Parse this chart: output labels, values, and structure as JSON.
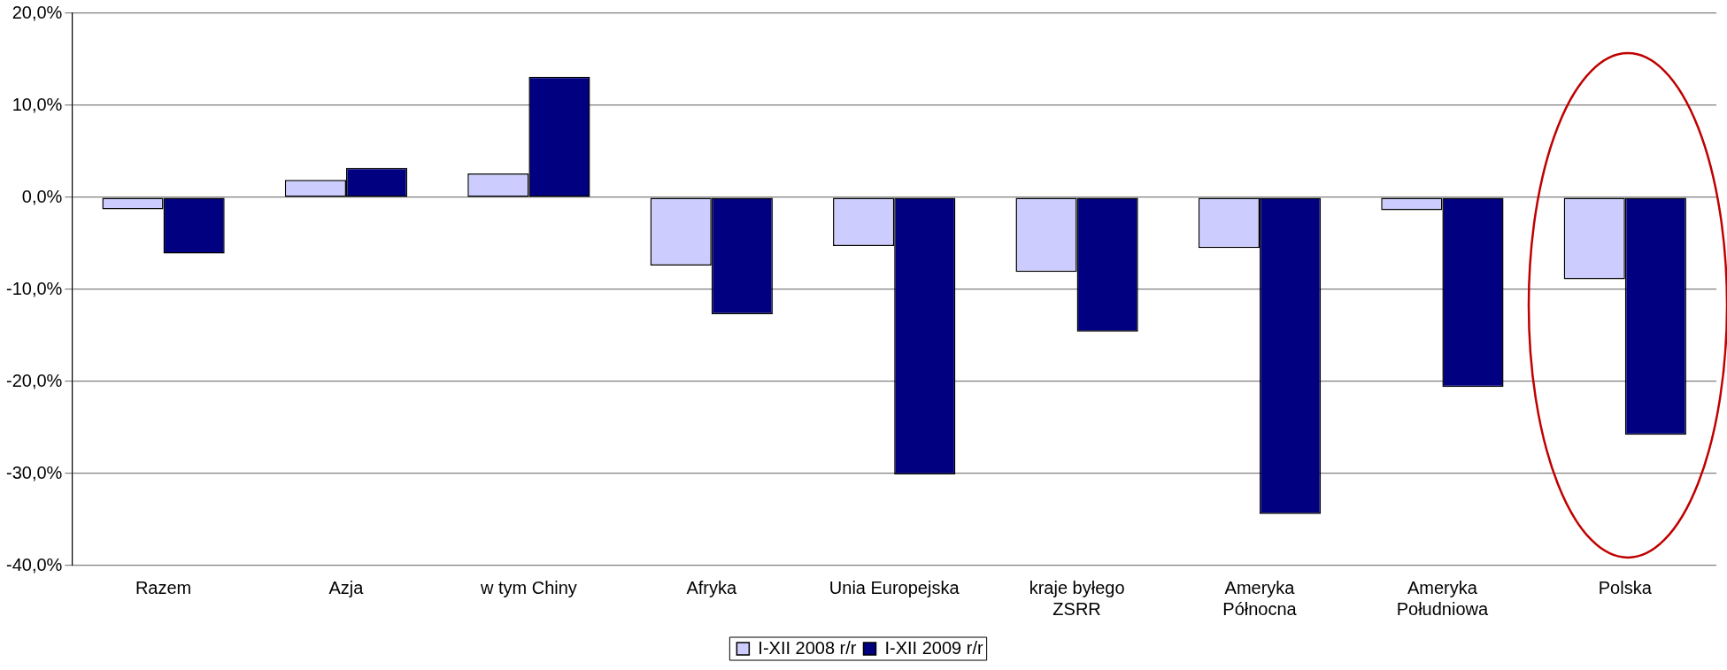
{
  "chart_data": {
    "type": "bar",
    "categories": [
      "Razem",
      "Azja",
      "w tym Chiny",
      "Afryka",
      "Unia Europejska",
      "kraje byłego\nZSRR",
      "Ameryka\nPółnocna",
      "Ameryka\nPołudniowa",
      "Polska"
    ],
    "series": [
      {
        "name": "I-XII 2008 r/r",
        "color": "#ccccff",
        "values": [
          -1.3,
          1.9,
          2.6,
          -7.4,
          -5.3,
          -8.1,
          -5.5,
          -1.4,
          -8.9
        ]
      },
      {
        "name": "I-XII 2009 r/r",
        "color": "#000080",
        "values": [
          -6.1,
          3.2,
          13.1,
          -12.7,
          -30.1,
          -14.6,
          -34.4,
          -20.6,
          -25.8
        ]
      }
    ],
    "ylim": [
      -40,
      20
    ],
    "yticks": [
      {
        "value": -40,
        "label": "-40,0%"
      },
      {
        "value": -30,
        "label": "-30,0%"
      },
      {
        "value": -20,
        "label": "-20,0%"
      },
      {
        "value": -10,
        "label": "-10,0%"
      },
      {
        "value": 0,
        "label": "0,0%"
      },
      {
        "value": 10,
        "label": "10,0%"
      },
      {
        "value": 20,
        "label": "20,0%"
      }
    ],
    "grid": "y",
    "legend": "bottom"
  }
}
